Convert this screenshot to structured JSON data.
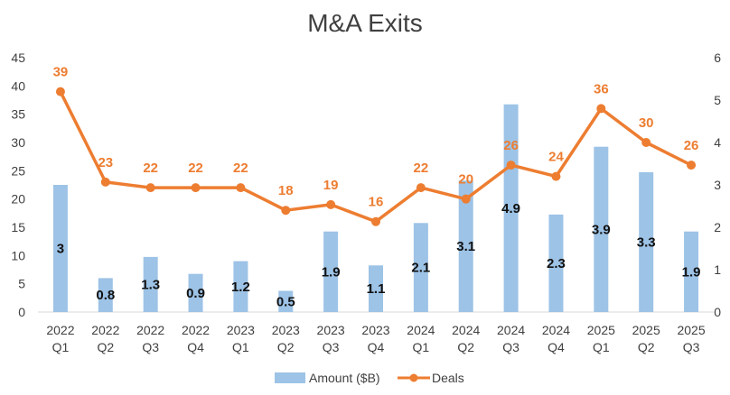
{
  "chart_data": {
    "type": "bar",
    "title": "M&A Exits",
    "categories": [
      [
        "2022",
        "Q1"
      ],
      [
        "2022",
        "Q2"
      ],
      [
        "2022",
        "Q3"
      ],
      [
        "2022",
        "Q4"
      ],
      [
        "2023",
        "Q1"
      ],
      [
        "2023",
        "Q2"
      ],
      [
        "2023",
        "Q3"
      ],
      [
        "2023",
        "Q4"
      ],
      [
        "2024",
        "Q1"
      ],
      [
        "2024",
        "Q2"
      ],
      [
        "2024",
        "Q3"
      ],
      [
        "2024",
        "Q4"
      ],
      [
        "2025",
        "Q1"
      ],
      [
        "2025",
        "Q2"
      ],
      [
        "2025",
        "Q3"
      ]
    ],
    "series": [
      {
        "name": "Amount ($B)",
        "type": "bar",
        "axis": "right",
        "color": "#9dc3e6",
        "values": [
          3,
          0.8,
          1.3,
          0.9,
          1.2,
          0.5,
          1.9,
          1.1,
          2.1,
          3.1,
          4.9,
          2.3,
          3.9,
          3.3,
          1.9
        ],
        "labels": [
          "3",
          "0.8",
          "1.3",
          "0.9",
          "1.2",
          "0.5",
          "1.9",
          "1.1",
          "2.1",
          "3.1",
          "4.9",
          "2.3",
          "3.9",
          "3.3",
          "1.9"
        ]
      },
      {
        "name": "Deals",
        "type": "line",
        "axis": "left",
        "color": "#ed7d31",
        "values": [
          39,
          23,
          22,
          22,
          22,
          18,
          19,
          16,
          22,
          20,
          26,
          24,
          36,
          30,
          26
        ],
        "labels": [
          "39",
          "23",
          "22",
          "22",
          "22",
          "18",
          "19",
          "16",
          "22",
          "20",
          "26",
          "24",
          "36",
          "30",
          "26"
        ]
      }
    ],
    "y_left": {
      "range": [
        0,
        45
      ],
      "ticks": [
        "0",
        "5",
        "10",
        "15",
        "20",
        "25",
        "30",
        "35",
        "40",
        "45"
      ]
    },
    "y_right": {
      "range": [
        0,
        6
      ],
      "ticks": [
        "0",
        "1",
        "2",
        "3",
        "4",
        "5",
        "6"
      ]
    },
    "grid": false,
    "legend_position": "bottom",
    "legend": [
      "Amount ($B)",
      "Deals"
    ]
  }
}
